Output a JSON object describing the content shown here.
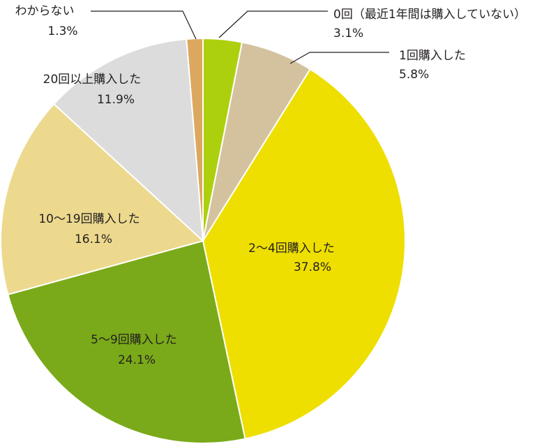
{
  "chart_data": {
    "type": "pie",
    "start_angle_deg": 0,
    "direction": "clockwise",
    "slices": [
      {
        "name": "0回（最近1年間は購入していない）",
        "value": 3.1,
        "value_label": "3.1%",
        "color": "#add00e"
      },
      {
        "name": "1回購入した",
        "value": 5.8,
        "value_label": "5.8%",
        "color": "#d4c29f"
      },
      {
        "name": "2〜4回購入した",
        "value": 37.8,
        "value_label": "37.8%",
        "color": "#eedf00"
      },
      {
        "name": "5〜9回購入した",
        "value": 24.1,
        "value_label": "24.1%",
        "color": "#7aaa19"
      },
      {
        "name": "10〜19回購入した",
        "value": 16.1,
        "value_label": "16.1%",
        "color": "#ecd98e"
      },
      {
        "name": "20回以上購入した",
        "value": 11.9,
        "value_label": "11.9%",
        "color": "#dcdcdc"
      },
      {
        "name": "わからない",
        "value": 1.3,
        "value_label": "1.3%",
        "color": "#dca860"
      }
    ]
  }
}
